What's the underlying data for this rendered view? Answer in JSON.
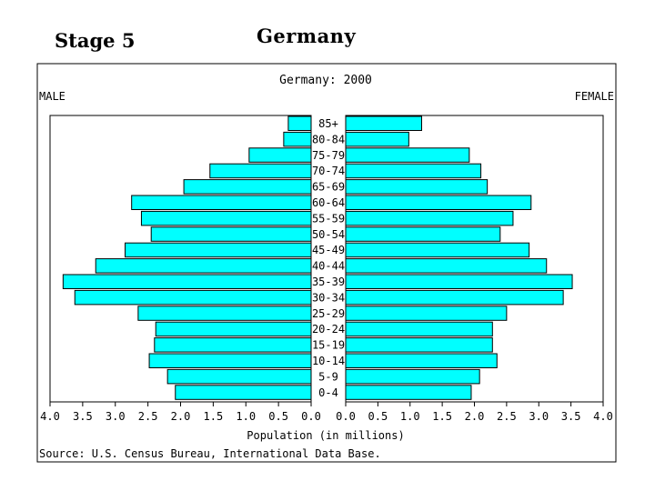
{
  "slide": {
    "stage_label": "Stage 5",
    "title": "Germany"
  },
  "chart_data": {
    "type": "bar",
    "subtype": "population-pyramid",
    "title": "Germany: 2000",
    "left_label": "MALE",
    "right_label": "FEMALE",
    "xlabel": "Population (in millions)",
    "source": "Source: U.S. Census Bureau, International Data Base.",
    "xlim": [
      0,
      4.0
    ],
    "xticks_male": [
      "4.0",
      "3.5",
      "3.0",
      "2.5",
      "2.0",
      "1.5",
      "1.0",
      "0.5",
      "0.0"
    ],
    "xticks_female": [
      "0.0",
      "0.5",
      "1.0",
      "1.5",
      "2.0",
      "2.5",
      "3.0",
      "3.5",
      "4.0"
    ],
    "bar_color": "#00ffff",
    "categories": [
      "85+",
      "80-84",
      "75-79",
      "70-74",
      "65-69",
      "60-64",
      "55-59",
      "50-54",
      "45-49",
      "40-44",
      "35-39",
      "30-34",
      "25-29",
      "20-24",
      "15-19",
      "10-14",
      "5-9",
      "0-4"
    ],
    "series": [
      {
        "name": "MALE",
        "values": [
          0.35,
          0.42,
          0.95,
          1.55,
          1.95,
          2.75,
          2.6,
          2.45,
          2.85,
          3.3,
          3.8,
          3.62,
          2.65,
          2.38,
          2.4,
          2.48,
          2.2,
          2.08
        ]
      },
      {
        "name": "FEMALE",
        "values": [
          1.18,
          0.98,
          1.92,
          2.1,
          2.2,
          2.88,
          2.6,
          2.4,
          2.85,
          3.12,
          3.52,
          3.38,
          2.5,
          2.28,
          2.28,
          2.35,
          2.08,
          1.95
        ]
      }
    ]
  }
}
